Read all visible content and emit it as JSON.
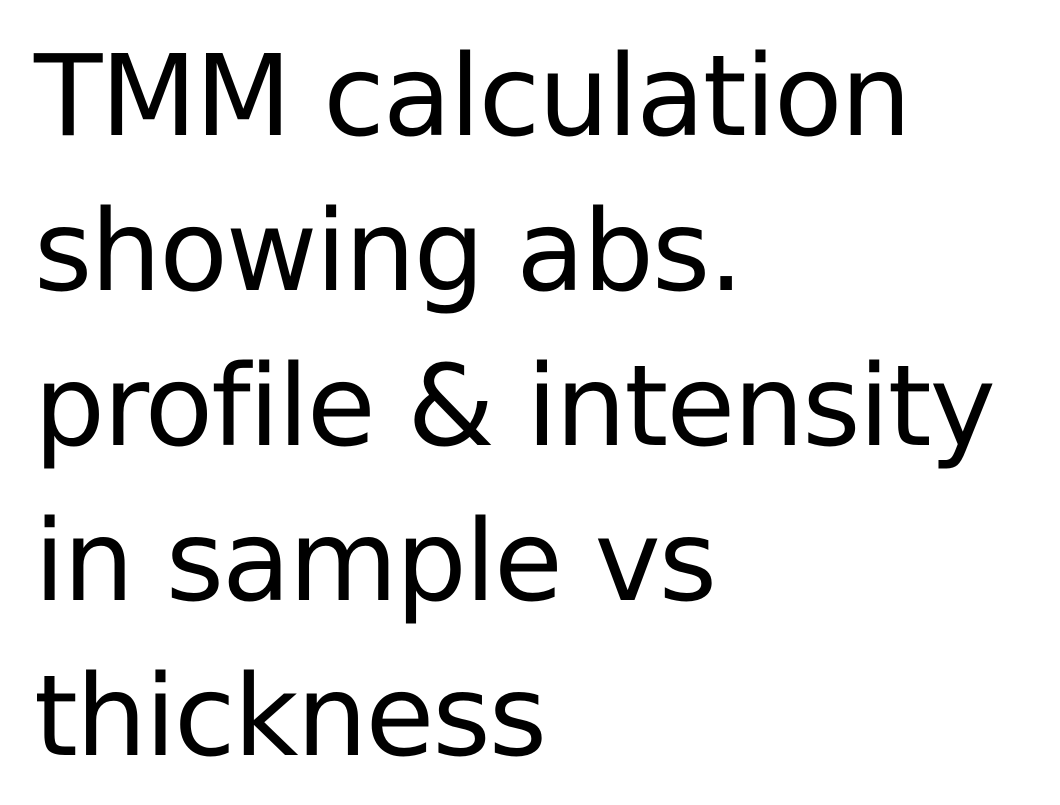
{
  "slide": {
    "lines": [
      "TMM calculation",
      "showing abs.",
      "profile & intensity",
      "in sample vs",
      "thickness"
    ],
    "text_color": "#000000",
    "background_color": "#ffffff"
  }
}
